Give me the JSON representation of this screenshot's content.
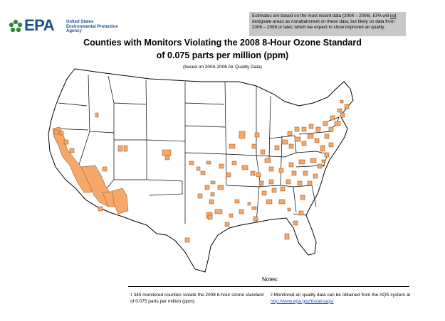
{
  "logo": {
    "wordmark": "EPA",
    "agency_line1": "United States",
    "agency_line2": "Environmental Protection",
    "agency_line3": "Agency"
  },
  "disclaimer": {
    "part1": "Estimates are based on the most recent data (2004 – 2006). EPA will ",
    "emph": "not",
    "part2": " designate areas as nonattainment on these data, but likely on data from 2006 – 2008 or later, which we expect to show improved air quality."
  },
  "title_line1": "Counties with Monitors Violating the 2008 8-Hour Ozone Standard",
  "title_line2": "of 0.075 parts per million (ppm)",
  "subtitle": "(based on 2004-2006 Air Quality Data)",
  "notes_label": "Notes:",
  "footnotes": [
    {
      "num": "1",
      "text": "345 monitored counties violate the 2008 8-hour ozone standard of 0.075 parts per million (ppm)."
    },
    {
      "num": "2",
      "text": "Monitored air quality data can be obtained from the AQS system at ",
      "link": "http://www.epa.gov/ttn/airsaqs/"
    }
  ],
  "colors": {
    "violating_county": "#f5a86a",
    "county_border": "#8a4a1c",
    "state_border": "#000000",
    "disclaimer_bg": "#c8c8c8",
    "epa_blue": "#1b4f8f"
  }
}
